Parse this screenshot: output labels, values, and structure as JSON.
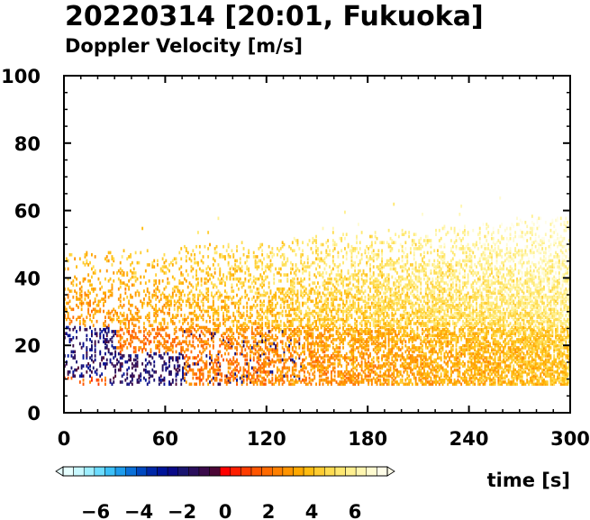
{
  "chart_data": {
    "type": "heatmap",
    "title": "20220314 [20:01, Fukuoka]",
    "subtitle": "Doppler Velocity [m/s]",
    "xlabel": "time [s]",
    "ylabel": "",
    "xlim": [
      0,
      300
    ],
    "ylim": [
      0,
      100
    ],
    "x_ticks": [
      "0",
      "60",
      "120",
      "180",
      "240",
      "300"
    ],
    "y_ticks": [
      "0",
      "20",
      "40",
      "60",
      "80",
      "100"
    ],
    "colorbar": {
      "range": [
        -7.5,
        7.5
      ],
      "tick_labels": [
        "−6",
        "−4",
        "−2",
        "0",
        "2",
        "4",
        "6"
      ],
      "colors": [
        "#e6ffff",
        "#c8f8ff",
        "#9eeeff",
        "#6cdcff",
        "#3cc0f8",
        "#1e9cec",
        "#0a70d8",
        "#0048c0",
        "#0028a8",
        "#00149a",
        "#0a0a88",
        "#1a1470",
        "#2a0e5c",
        "#3a0a4a",
        "#4c0636",
        "#ff0000",
        "#ff1e00",
        "#ff3c00",
        "#ff5500",
        "#ff6a00",
        "#ff8000",
        "#ff9400",
        "#ffa800",
        "#ffbc10",
        "#ffcc30",
        "#ffdc50",
        "#ffe870",
        "#fff090",
        "#fff6b0",
        "#fffbd0",
        "#fffde8"
      ]
    },
    "echo_regions": [
      {
        "t": [
          0,
          300
        ],
        "h": [
          8,
          60
        ],
        "v": [
          0.5,
          6.5
        ],
        "note": "positive velocities (red-orange-yellow), echo top rising from ~45 m to ~60 m"
      },
      {
        "t": [
          0,
          30
        ],
        "h": [
          10,
          25
        ],
        "v": [
          -3,
          -1
        ],
        "note": "negative velocities (blue)"
      },
      {
        "t": [
          25,
          70
        ],
        "h": [
          8,
          17
        ],
        "v": [
          -3,
          -0.5
        ],
        "note": "negative velocities (blue)"
      }
    ]
  }
}
